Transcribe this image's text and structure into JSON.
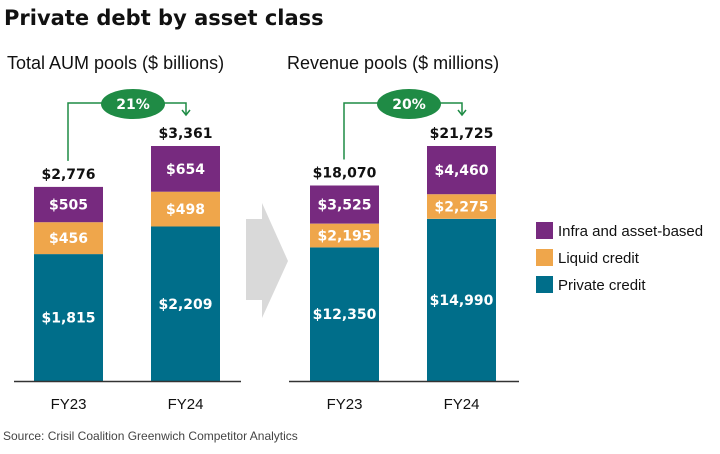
{
  "title": "Private debt by asset class",
  "source": "Source: Crisil Coalition Greenwich Competitor Analytics",
  "colors": {
    "infra": "#772a7f",
    "liquid": "#efa64b",
    "private": "#006e8a",
    "growth_badge": "#1f8b45",
    "arrow": "#d9d9d9",
    "axis": "#333333"
  },
  "legend": [
    {
      "label": "Infra and asset-based",
      "color_key": "infra"
    },
    {
      "label": "Liquid credit",
      "color_key": "liquid"
    },
    {
      "label": "Private credit",
      "color_key": "private"
    }
  ],
  "chart_data": [
    {
      "type": "bar",
      "stacked": true,
      "title": "Total AUM pools ($ billions)",
      "categories": [
        "FY23",
        "FY24"
      ],
      "series": [
        {
          "name": "Private credit",
          "values": [
            1815,
            2209
          ],
          "labels": [
            "$1,815",
            "$2,209"
          ]
        },
        {
          "name": "Liquid credit",
          "values": [
            456,
            498
          ],
          "labels": [
            "$456",
            "$498"
          ]
        },
        {
          "name": "Infra and asset-based",
          "values": [
            505,
            654
          ],
          "labels": [
            "$505",
            "$654"
          ]
        }
      ],
      "totals": [
        2776,
        3361
      ],
      "total_labels": [
        "$2,776",
        "$3,361"
      ],
      "growth_label": "21%",
      "ylim": [
        0,
        3361
      ]
    },
    {
      "type": "bar",
      "stacked": true,
      "title": "Revenue pools ($ millions)",
      "categories": [
        "FY23",
        "FY24"
      ],
      "series": [
        {
          "name": "Private credit",
          "values": [
            12350,
            14990
          ],
          "labels": [
            "$12,350",
            "$14,990"
          ]
        },
        {
          "name": "Liquid credit",
          "values": [
            2195,
            2275
          ],
          "labels": [
            "$2,195",
            "$2,275"
          ]
        },
        {
          "name": "Infra and asset-based",
          "values": [
            3525,
            4460
          ],
          "labels": [
            "$3,525",
            "$4,460"
          ]
        }
      ],
      "totals": [
        18070,
        21725
      ],
      "total_labels": [
        "$18,070",
        "$21,725"
      ],
      "growth_label": "20%",
      "ylim": [
        0,
        21725
      ]
    }
  ]
}
